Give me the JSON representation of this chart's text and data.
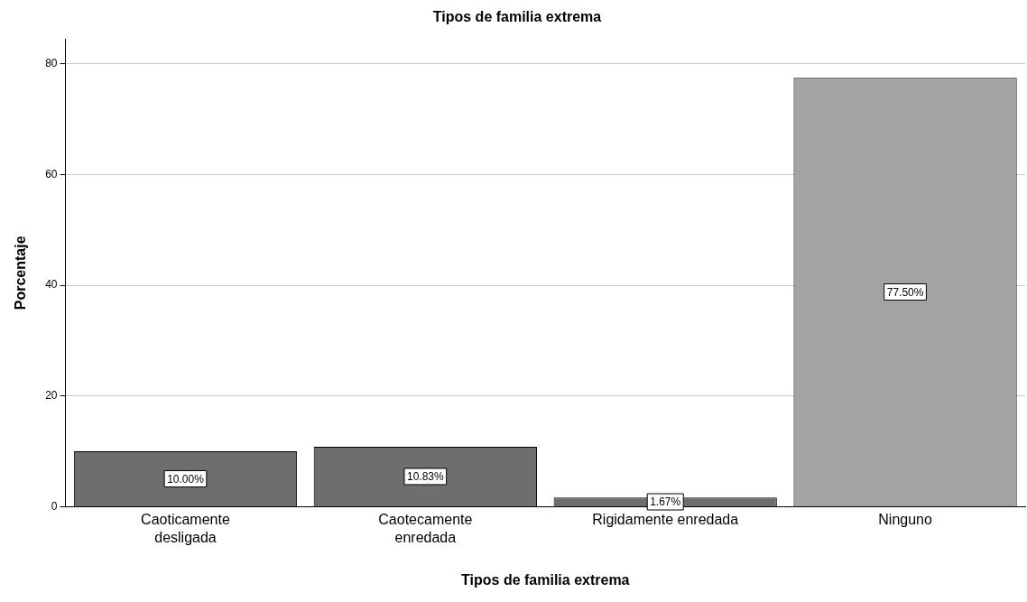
{
  "chart_data": {
    "type": "bar",
    "title": "Tipos de familia extrema",
    "xlabel": "Tipos de familia extrema",
    "ylabel": "Porcentaje",
    "categories": [
      "Caoticamente desligada",
      "Caotecamente enredada",
      "Rigidamente enredada",
      "Ninguno"
    ],
    "values": [
      10,
      10.83,
      1.67,
      77.5
    ],
    "colors": [
      "#6e6e6e",
      "#6e6e6e",
      "#6e6e6e",
      "#a3a3a3"
    ],
    "value_labels": [
      "10.00%",
      "10.83%",
      "1.67%",
      "77.50%"
    ],
    "ylim": [
      0,
      84.5
    ],
    "yticks": [
      0,
      20,
      40,
      60,
      80
    ],
    "grid": "y"
  }
}
